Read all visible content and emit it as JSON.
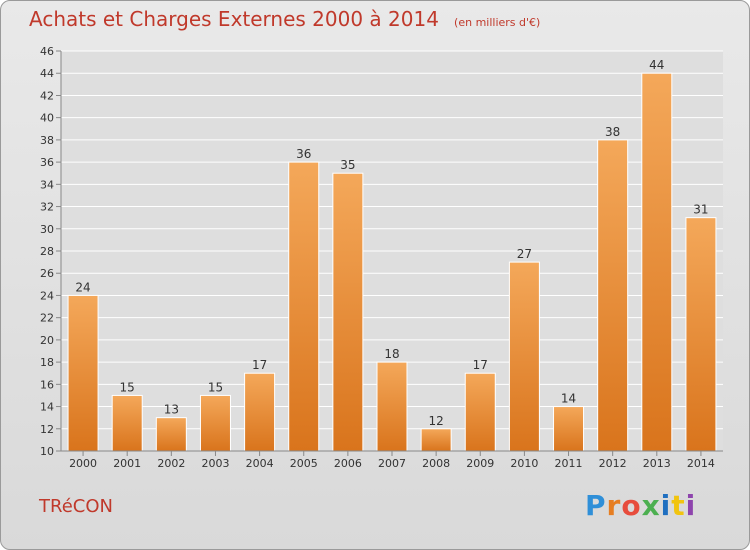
{
  "header": {
    "title": "Achats et Charges Externes 2000 à 2014",
    "unit": "(en milliers d'€)"
  },
  "footer": {
    "commune": "TRéCON",
    "brand": "Proxiti",
    "brand_colors": [
      "#2f8fd8",
      "#e67e22",
      "#e74c3c",
      "#4caf50",
      "#1f6fc0",
      "#f1c40f",
      "#8e44ad"
    ]
  },
  "chart_data": {
    "type": "bar",
    "title": "Achats et Charges Externes 2000 à 2014",
    "subtitle": "(en milliers d'€)",
    "xlabel": "",
    "ylabel": "",
    "categories": [
      "2000",
      "2001",
      "2002",
      "2003",
      "2004",
      "2005",
      "2006",
      "2007",
      "2008",
      "2009",
      "2010",
      "2011",
      "2012",
      "2013",
      "2014"
    ],
    "values": [
      24,
      15,
      13,
      15,
      17,
      36,
      35,
      18,
      12,
      17,
      27,
      14,
      38,
      44,
      31
    ],
    "ylim": [
      10,
      46
    ],
    "yticks": [
      10,
      12,
      14,
      16,
      18,
      20,
      22,
      24,
      26,
      28,
      30,
      32,
      34,
      36,
      38,
      40,
      42,
      44,
      46
    ],
    "grid": true,
    "legend": "none",
    "colors": {
      "bar_top": "#f4a85a",
      "bar_bottom": "#d9741c",
      "grid": "#ffffff",
      "axis": "#888888"
    }
  }
}
